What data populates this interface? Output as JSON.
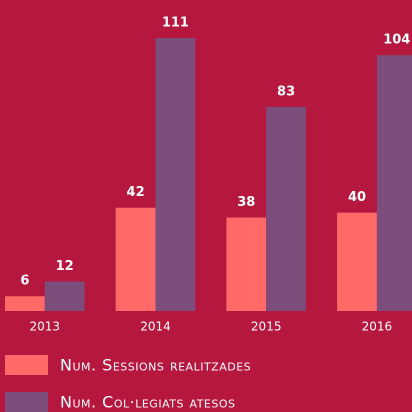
{
  "chart_data": {
    "type": "bar",
    "categories": [
      "2013",
      "2014",
      "2015",
      "2016"
    ],
    "series": [
      {
        "name": "Num. Sessions realitzades",
        "color": "#ff6a68",
        "values": [
          6,
          42,
          38,
          40
        ]
      },
      {
        "name": "Num. Col·legiats atesos",
        "color": "#7c4d7a",
        "values": [
          12,
          111,
          83,
          104
        ]
      }
    ]
  }
}
